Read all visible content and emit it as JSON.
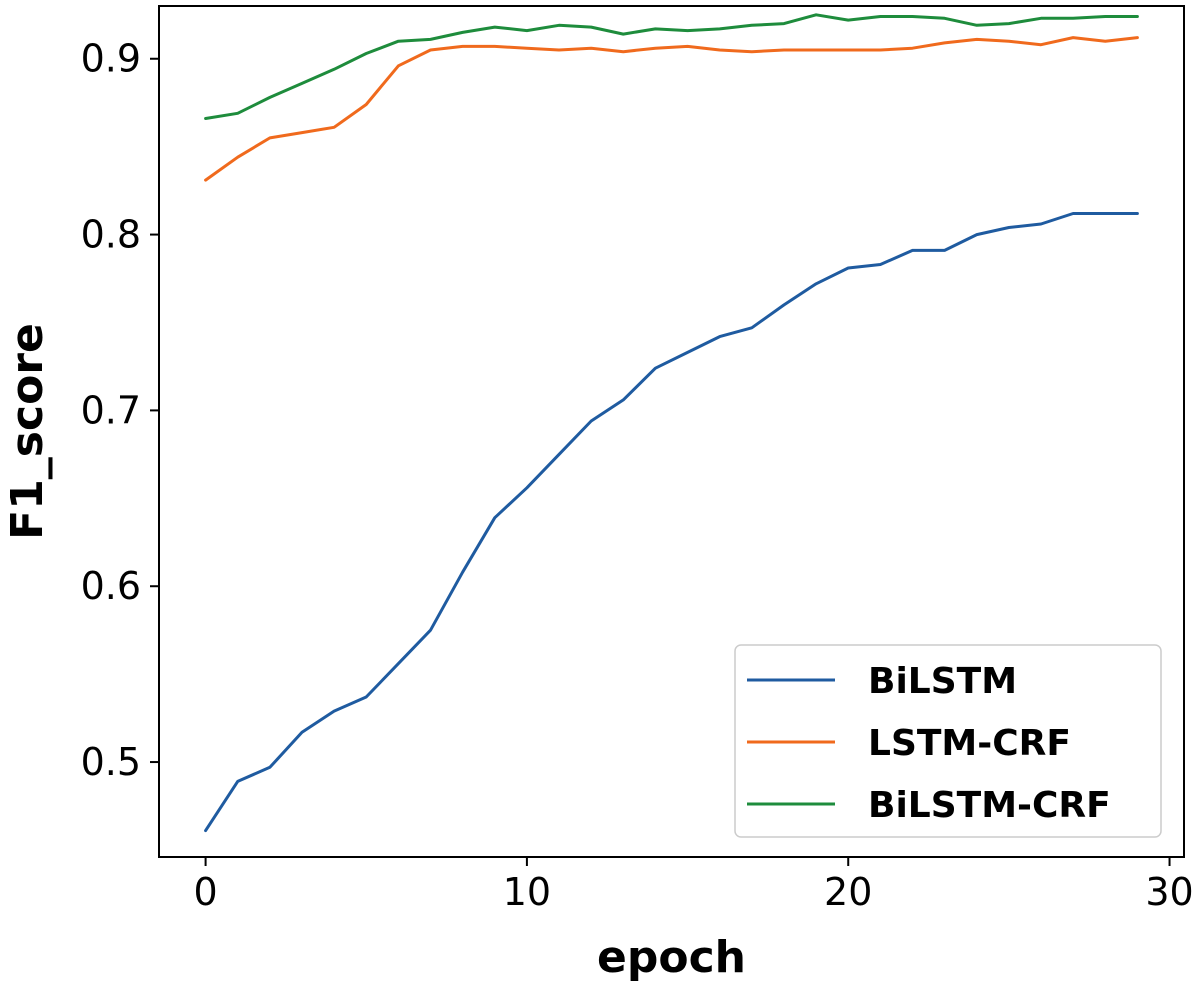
{
  "chart_data": {
    "type": "line",
    "title": "",
    "xlabel": "epoch",
    "ylabel": "F1_score",
    "xlim": [
      -1.45,
      30.45
    ],
    "ylim": [
      0.446,
      0.93
    ],
    "xticks": [
      0,
      10,
      20,
      30
    ],
    "xtick_labels": [
      "0",
      "10",
      "20",
      "30"
    ],
    "yticks": [
      0.5,
      0.6,
      0.7,
      0.8,
      0.9
    ],
    "ytick_labels": [
      "0.5",
      "0.6",
      "0.7",
      "0.8",
      "0.9"
    ],
    "grid": false,
    "legend_position": "lower-right",
    "x": [
      0,
      1,
      2,
      3,
      4,
      5,
      6,
      7,
      8,
      9,
      10,
      11,
      12,
      13,
      14,
      15,
      16,
      17,
      18,
      19,
      20,
      21,
      22,
      23,
      24,
      25,
      26,
      27,
      28,
      29
    ],
    "series": [
      {
        "name": "BiLSTM",
        "color": "#1f5ba0",
        "values": [
          0.461,
          0.489,
          0.497,
          0.517,
          0.529,
          0.537,
          0.556,
          0.575,
          0.608,
          0.639,
          0.656,
          0.675,
          0.694,
          0.706,
          0.724,
          0.733,
          0.742,
          0.747,
          0.76,
          0.772,
          0.781,
          0.783,
          0.791,
          0.791,
          0.8,
          0.804,
          0.806,
          0.812,
          0.812,
          0.812
        ]
      },
      {
        "name": "LSTM-CRF",
        "color": "#f06a1d",
        "values": [
          0.831,
          0.844,
          0.855,
          0.858,
          0.861,
          0.874,
          0.896,
          0.905,
          0.907,
          0.907,
          0.906,
          0.905,
          0.906,
          0.904,
          0.906,
          0.907,
          0.905,
          0.904,
          0.905,
          0.905,
          0.905,
          0.905,
          0.906,
          0.909,
          0.911,
          0.91,
          0.908,
          0.912,
          0.91,
          0.912
        ]
      },
      {
        "name": "BiLSTM-CRF",
        "color": "#1e8c3c",
        "values": [
          0.866,
          0.869,
          0.878,
          0.886,
          0.894,
          0.903,
          0.91,
          0.911,
          0.915,
          0.918,
          0.916,
          0.919,
          0.918,
          0.914,
          0.917,
          0.916,
          0.917,
          0.919,
          0.92,
          0.925,
          0.922,
          0.924,
          0.924,
          0.923,
          0.919,
          0.92,
          0.923,
          0.923,
          0.924,
          0.924
        ]
      }
    ]
  }
}
